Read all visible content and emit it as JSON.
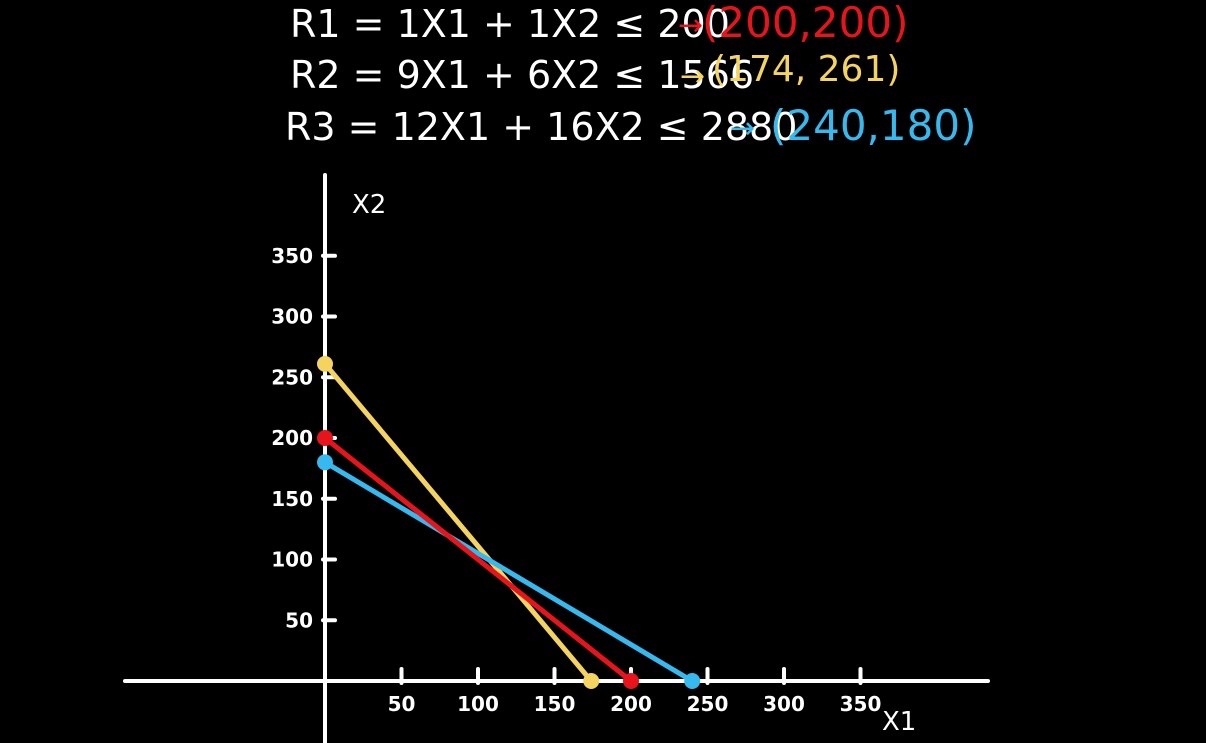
{
  "equations": [
    {
      "label": "R1 = 1X1 + 1X2 ≤ 200",
      "arrow": "→",
      "point": "(200,200)",
      "color": "#e8141c"
    },
    {
      "label": "R2 = 9X1 + 6X2 ≤ 1566",
      "arrow": "→",
      "point": "(174, 261)",
      "color": "#f4d35e"
    },
    {
      "label": "R3 = 12X1 + 16X2 ≤ 2880",
      "arrow": "→",
      "point": "(240,180)",
      "color": "#36b9ee"
    }
  ],
  "chart_data": {
    "type": "line",
    "xlabel": "X1",
    "ylabel": "X2",
    "xlim": [
      0,
      400
    ],
    "ylim": [
      0,
      380
    ],
    "xticks": [
      50,
      100,
      150,
      200,
      250,
      300,
      350
    ],
    "yticks": [
      50,
      100,
      150,
      200,
      250,
      300,
      350
    ],
    "grid": false,
    "series": [
      {
        "name": "R1",
        "color": "#e8141c",
        "points": [
          [
            0,
            200
          ],
          [
            200,
            0
          ]
        ]
      },
      {
        "name": "R2",
        "color": "#f4d35e",
        "points": [
          [
            0,
            261
          ],
          [
            174,
            0
          ]
        ]
      },
      {
        "name": "R3",
        "color": "#36b9ee",
        "points": [
          [
            0,
            180
          ],
          [
            240,
            0
          ]
        ]
      }
    ]
  }
}
